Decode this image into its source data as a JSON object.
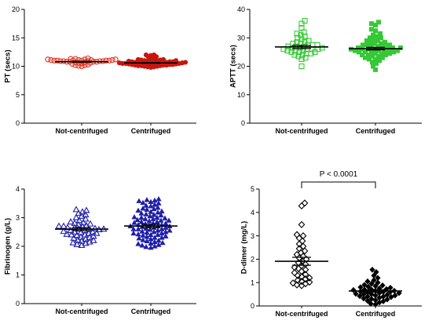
{
  "chart_data": [
    {
      "type": "scatter",
      "ylabel": "PT (secs)",
      "ylim": [
        0,
        20
      ],
      "y_ticks": [
        0,
        5,
        10,
        15,
        20
      ],
      "grid": false,
      "categories": [
        "Not-centrifuged",
        "Centrifuged"
      ],
      "series": [
        {
          "marker": "circle-open",
          "color": "#e3301f",
          "mean": 10.8,
          "sem": 0.08,
          "values": [
            10.0,
            10.1,
            10.2,
            10.2,
            10.3,
            10.4,
            10.5,
            10.6,
            10.6,
            10.7,
            10.7,
            10.8,
            10.8,
            10.8,
            10.8,
            10.9,
            10.9,
            10.9,
            10.9,
            11.0,
            11.0,
            11.0,
            11.0,
            11.0,
            11.1,
            11.1,
            11.1,
            11.1,
            11.2,
            11.2,
            11.2,
            11.3,
            11.3,
            11.4,
            10.9,
            11.0
          ]
        },
        {
          "marker": "circle-filled",
          "color": "#c8160f",
          "mean": 10.6,
          "sem": 0.07,
          "values": [
            9.8,
            9.9,
            9.9,
            10.0,
            10.0,
            10.1,
            10.1,
            10.1,
            10.2,
            10.2,
            10.2,
            10.3,
            10.3,
            10.3,
            10.3,
            10.4,
            10.4,
            10.4,
            10.4,
            10.5,
            10.5,
            10.5,
            10.5,
            10.5,
            10.6,
            10.6,
            10.6,
            10.6,
            10.6,
            10.7,
            10.7,
            10.7,
            10.7,
            10.8,
            10.8,
            10.8,
            10.8,
            10.9,
            10.9,
            10.9,
            11.0,
            11.0,
            11.0,
            11.1,
            11.1,
            11.2,
            11.2,
            11.3,
            11.4,
            11.6,
            11.7,
            11.9,
            12.0,
            12.0
          ]
        }
      ]
    },
    {
      "type": "scatter",
      "ylabel": "APTT (secs)",
      "ylim": [
        0,
        40
      ],
      "y_ticks": [
        0,
        10,
        20,
        30,
        40
      ],
      "grid": false,
      "categories": [
        "Not-centrifuged",
        "Centrifuged"
      ],
      "series": [
        {
          "marker": "square-open",
          "color": "#35c935",
          "mean": 26.8,
          "sem": 0.55,
          "values": [
            20.0,
            22.5,
            23.0,
            23.5,
            24.0,
            24.0,
            24.5,
            24.5,
            25.0,
            25.0,
            25.0,
            25.5,
            25.5,
            25.5,
            26.0,
            26.0,
            26.0,
            26.0,
            26.5,
            26.5,
            26.5,
            27.0,
            27.0,
            27.0,
            27.5,
            27.5,
            27.5,
            28.0,
            28.0,
            28.5,
            28.5,
            29.0,
            29.5,
            30.0,
            30.5,
            31.0,
            31.5,
            32.0,
            33.5,
            35.0,
            36.0
          ]
        },
        {
          "marker": "square-filled",
          "color": "#35c935",
          "mean": 26.2,
          "sem": 0.45,
          "values": [
            18.8,
            20.0,
            21.0,
            21.5,
            22.0,
            22.5,
            22.5,
            23.0,
            23.0,
            23.5,
            23.5,
            24.0,
            24.0,
            24.0,
            24.5,
            24.5,
            24.5,
            25.0,
            25.0,
            25.0,
            25.0,
            25.5,
            25.5,
            25.5,
            25.5,
            26.0,
            26.0,
            26.0,
            26.0,
            26.0,
            26.5,
            26.5,
            26.5,
            26.5,
            27.0,
            27.0,
            27.0,
            27.5,
            27.5,
            27.5,
            28.0,
            28.0,
            28.5,
            28.5,
            29.0,
            29.0,
            29.5,
            30.0,
            30.0,
            30.5,
            31.0,
            31.5,
            32.5,
            33.0,
            34.5,
            35.0,
            35.5
          ]
        }
      ]
    },
    {
      "type": "scatter",
      "ylabel": "Fibrinogen (g/L)",
      "ylim": [
        0,
        4
      ],
      "y_ticks": [
        0,
        1,
        2,
        3,
        4
      ],
      "grid": false,
      "categories": [
        "Not-centrifuged",
        "Centrifuged"
      ],
      "series": [
        {
          "marker": "triangle-open",
          "color": "#1e1ea8",
          "mean": 2.6,
          "sem": 0.05,
          "values": [
            2.03,
            2.06,
            2.1,
            2.12,
            2.15,
            2.18,
            2.2,
            2.22,
            2.25,
            2.28,
            2.3,
            2.32,
            2.35,
            2.38,
            2.4,
            2.4,
            2.42,
            2.45,
            2.45,
            2.48,
            2.5,
            2.5,
            2.52,
            2.55,
            2.55,
            2.58,
            2.6,
            2.6,
            2.6,
            2.62,
            2.65,
            2.65,
            2.68,
            2.7,
            2.7,
            2.72,
            2.75,
            2.78,
            2.8,
            2.82,
            2.85,
            2.9,
            2.95,
            3.0,
            3.05,
            3.1,
            3.15,
            3.2,
            3.25,
            3.28
          ]
        },
        {
          "marker": "triangle-filled",
          "color": "#1e1ea8",
          "mean": 2.71,
          "sem": 0.06,
          "values": [
            1.95,
            1.98,
            2.0,
            2.03,
            2.05,
            2.08,
            2.1,
            2.12,
            2.15,
            2.18,
            2.2,
            2.22,
            2.25,
            2.28,
            2.3,
            2.3,
            2.33,
            2.35,
            2.38,
            2.4,
            2.4,
            2.42,
            2.45,
            2.45,
            2.48,
            2.5,
            2.5,
            2.52,
            2.55,
            2.55,
            2.58,
            2.6,
            2.6,
            2.6,
            2.62,
            2.65,
            2.65,
            2.68,
            2.7,
            2.7,
            2.7,
            2.72,
            2.75,
            2.75,
            2.78,
            2.8,
            2.8,
            2.82,
            2.85,
            2.85,
            2.88,
            2.9,
            2.9,
            2.92,
            2.95,
            2.95,
            2.98,
            3.0,
            3.0,
            3.02,
            3.05,
            3.08,
            3.1,
            3.12,
            3.15,
            3.18,
            3.2,
            3.22,
            3.25,
            3.28,
            3.3,
            3.32,
            3.35,
            3.4,
            3.42,
            3.45,
            3.5,
            3.52,
            3.55,
            3.58,
            3.6,
            3.62,
            3.65
          ]
        }
      ]
    },
    {
      "type": "scatter",
      "ylabel": "D-dimer (mg/L)",
      "ylim": [
        0,
        5
      ],
      "y_ticks": [
        0,
        1,
        2,
        3,
        4,
        5
      ],
      "grid": false,
      "categories": [
        "Not-centrifuged",
        "Centrifuged"
      ],
      "series": [
        {
          "marker": "diamond-open",
          "color": "#000000",
          "mean": 1.91,
          "sem": 0.17,
          "values": [
            0.87,
            0.9,
            0.95,
            0.98,
            1.02,
            1.05,
            1.1,
            1.15,
            1.2,
            1.25,
            1.3,
            1.35,
            1.42,
            1.48,
            1.55,
            1.6,
            1.65,
            1.72,
            1.78,
            1.85,
            1.92,
            2.0,
            2.05,
            2.12,
            2.2,
            2.28,
            2.35,
            2.45,
            2.55,
            2.65,
            2.78,
            2.9,
            3.0,
            3.05,
            3.48,
            4.28,
            4.4
          ]
        },
        {
          "marker": "diamond-filled",
          "color": "#000000",
          "mean": 0.64,
          "sem": 0.05,
          "values": [
            0.07,
            0.1,
            0.15,
            0.2,
            0.22,
            0.25,
            0.28,
            0.3,
            0.32,
            0.35,
            0.38,
            0.4,
            0.4,
            0.42,
            0.45,
            0.45,
            0.48,
            0.5,
            0.5,
            0.52,
            0.55,
            0.55,
            0.58,
            0.6,
            0.6,
            0.62,
            0.65,
            0.65,
            0.68,
            0.7,
            0.7,
            0.72,
            0.75,
            0.78,
            0.8,
            0.82,
            0.85,
            0.88,
            0.9,
            0.95,
            1.0,
            1.05,
            1.1,
            1.2,
            1.3,
            1.45,
            1.55
          ]
        }
      ],
      "annotations": [
        {
          "text": "P < 0.0001",
          "between": [
            0,
            1
          ]
        }
      ]
    }
  ]
}
